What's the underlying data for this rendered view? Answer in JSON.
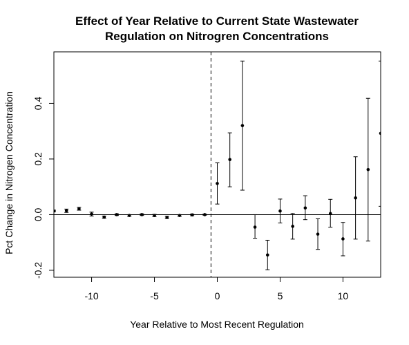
{
  "chart_data": {
    "type": "scatter",
    "title_lines": [
      "Effect of Year Relative to Current State Wastewater",
      "Regulation on Nitrogren Concentrations"
    ],
    "xlabel": "Year Relative to Most Recent Regulation",
    "ylabel": "Pct Change in Nitrogen Concentration",
    "xlim": [
      -13,
      13
    ],
    "ylim": [
      -0.225,
      0.585
    ],
    "x_ticks": [
      -10,
      -5,
      0,
      5,
      10
    ],
    "x_tick_labels": [
      "-10",
      "-5",
      "0",
      "5",
      "10"
    ],
    "y_ticks": [
      -0.2,
      0.0,
      0.2,
      0.4
    ],
    "y_tick_labels": [
      "-0.2",
      "0.0",
      "0.2",
      "0.4"
    ],
    "reference_hline": 0.0,
    "reference_vline": -0.5,
    "grid": false,
    "points": [
      {
        "x": -13,
        "y": 0.013,
        "lo": 0.01,
        "hi": 0.016
      },
      {
        "x": -12,
        "y": 0.014,
        "lo": 0.008,
        "hi": 0.02
      },
      {
        "x": -11,
        "y": 0.021,
        "lo": 0.016,
        "hi": 0.026
      },
      {
        "x": -10,
        "y": 0.002,
        "lo": -0.005,
        "hi": 0.009
      },
      {
        "x": -9,
        "y": -0.009,
        "lo": -0.013,
        "hi": -0.005
      },
      {
        "x": -8,
        "y": 0.0,
        "lo": -0.003,
        "hi": 0.003
      },
      {
        "x": -7,
        "y": -0.003,
        "lo": -0.006,
        "hi": 0.0
      },
      {
        "x": -6,
        "y": 0.0,
        "lo": -0.003,
        "hi": 0.003
      },
      {
        "x": -5,
        "y": -0.003,
        "lo": -0.007,
        "hi": 0.001
      },
      {
        "x": -4,
        "y": -0.01,
        "lo": -0.014,
        "hi": -0.006
      },
      {
        "x": -3,
        "y": -0.003,
        "lo": -0.006,
        "hi": 0.0
      },
      {
        "x": -2,
        "y": -0.001,
        "lo": -0.004,
        "hi": 0.002
      },
      {
        "x": -1,
        "y": 0.0,
        "lo": -0.002,
        "hi": 0.002
      },
      {
        "x": 0,
        "y": 0.112,
        "lo": 0.038,
        "hi": 0.186
      },
      {
        "x": 1,
        "y": 0.198,
        "lo": 0.1,
        "hi": 0.294
      },
      {
        "x": 2,
        "y": 0.32,
        "lo": 0.088,
        "hi": 0.552
      },
      {
        "x": 3,
        "y": -0.045,
        "lo": -0.085,
        "hi": 0.0
      },
      {
        "x": 4,
        "y": -0.145,
        "lo": -0.198,
        "hi": -0.092
      },
      {
        "x": 5,
        "y": 0.013,
        "lo": -0.03,
        "hi": 0.056
      },
      {
        "x": 6,
        "y": -0.042,
        "lo": -0.088,
        "hi": 0.004
      },
      {
        "x": 7,
        "y": 0.024,
        "lo": -0.018,
        "hi": 0.068
      },
      {
        "x": 8,
        "y": -0.07,
        "lo": -0.125,
        "hi": -0.015
      },
      {
        "x": 9,
        "y": 0.004,
        "lo": -0.045,
        "hi": 0.055
      },
      {
        "x": 10,
        "y": -0.087,
        "lo": -0.148,
        "hi": -0.028
      },
      {
        "x": 11,
        "y": 0.06,
        "lo": -0.088,
        "hi": 0.208
      },
      {
        "x": 12,
        "y": 0.162,
        "lo": -0.095,
        "hi": 0.418
      },
      {
        "x": 13,
        "y": 0.292,
        "lo": 0.03,
        "hi": 0.552
      }
    ]
  }
}
